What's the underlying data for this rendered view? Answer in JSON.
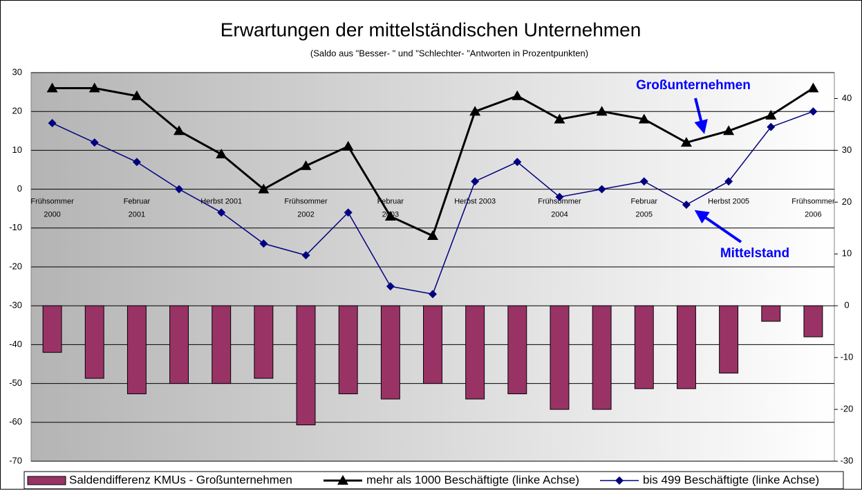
{
  "chart_data": {
    "type": "combo",
    "title": "Erwartungen der mittelständischen Unternehmen",
    "subtitle": "(Saldo aus \"Besser- \" und \"Schlechter- \"Antworten in Prozentpunkten)",
    "categories": [
      "Frühsommer\n2000",
      null,
      "Februar\n2001",
      null,
      "Herbst 2001",
      null,
      "Frühsommer\n2002",
      null,
      "Februar\n2003",
      null,
      "Herbst 2003",
      null,
      "Frühsommer\n2004",
      null,
      "Februar\n2005",
      null,
      "Herbst 2005",
      null,
      "Frühsommer\n2006"
    ],
    "series": [
      {
        "name": "Saldendifferenz KMUs - Großunternehmen",
        "type": "bar",
        "axis": "y2",
        "color": "#993366",
        "values": [
          -9,
          -14,
          -17,
          -15,
          -15,
          -14,
          -23,
          -17,
          -18,
          -15,
          -18,
          -17,
          -20,
          -20,
          -16,
          -16,
          -13,
          -3,
          -6
        ]
      },
      {
        "name": "mehr als 1000 Beschäftigte (linke Achse)",
        "type": "line",
        "marker": "triangle",
        "color": "#000000",
        "values": [
          26,
          26,
          24,
          15,
          9,
          0,
          6,
          11,
          -7,
          -12,
          20,
          24,
          18,
          20,
          18,
          12,
          15,
          19,
          26
        ]
      },
      {
        "name": "bis 499 Beschäftigte (linke Achse)",
        "type": "line",
        "marker": "diamond",
        "color": "#000080",
        "values": [
          17,
          12,
          7,
          0,
          -6,
          -14,
          -17,
          -6,
          -25,
          -27,
          2,
          7,
          -2,
          0,
          2,
          -4,
          2,
          16,
          20
        ]
      }
    ],
    "annotations": [
      "Großunternehmen",
      "Mittelstand"
    ],
    "ylim": [
      -70,
      30
    ],
    "yticks": [
      -70,
      -60,
      -50,
      -40,
      -30,
      -20,
      -10,
      0,
      10,
      20,
      30
    ],
    "y2lim": [
      -30,
      45
    ],
    "y2ticks": [
      -30,
      -20,
      -10,
      0,
      10,
      20,
      30,
      40
    ],
    "grid": true,
    "legend": "bottom"
  }
}
